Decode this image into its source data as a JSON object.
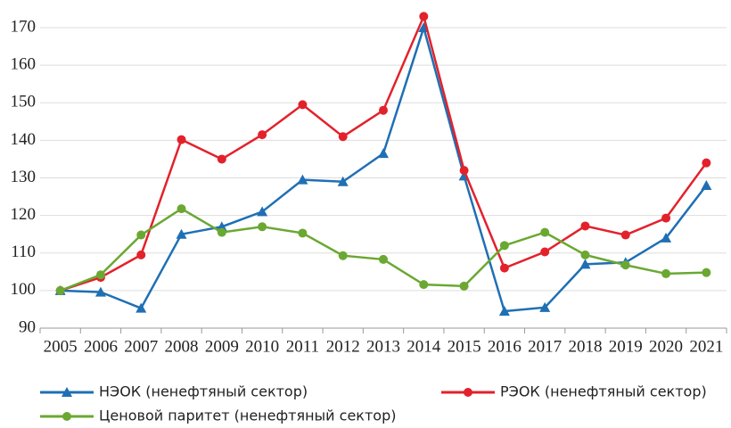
{
  "chart_data": {
    "type": "line",
    "categories": [
      "2005",
      "2006",
      "2007",
      "2008",
      "2009",
      "2010",
      "2011",
      "2012",
      "2013",
      "2014",
      "2015",
      "2016",
      "2017",
      "2018",
      "2019",
      "2020",
      "2021"
    ],
    "series": [
      {
        "name": "НЭОК (ненефтяный сектор)",
        "color": "#1f6fb4",
        "marker": "triangle",
        "values": [
          100,
          99.6,
          95.3,
          115,
          117,
          121,
          129.5,
          129,
          136.5,
          170,
          130.5,
          94.5,
          95.5,
          107,
          107.5,
          114,
          128
        ]
      },
      {
        "name": "РЭОК (ненефтяный сектор)",
        "color": "#e3212b",
        "marker": "circle",
        "values": [
          100,
          103.5,
          109.5,
          140.2,
          135,
          141.5,
          149.5,
          141,
          148,
          173,
          132,
          106,
          110.3,
          117.2,
          114.8,
          119.3,
          134
        ]
      },
      {
        "name": "Ценовой паритет (ненефтяный сектор)",
        "color": "#6aa832",
        "marker": "circle",
        "values": [
          100,
          104.2,
          114.8,
          121.8,
          115.5,
          117,
          115.3,
          109.3,
          108.3,
          101.6,
          101.2,
          112,
          115.5,
          109.5,
          106.8,
          104.5,
          104.8
        ]
      }
    ],
    "ylim": [
      90,
      175
    ],
    "yticks": [
      90,
      100,
      110,
      120,
      130,
      140,
      150,
      160,
      170
    ],
    "grid": true
  }
}
